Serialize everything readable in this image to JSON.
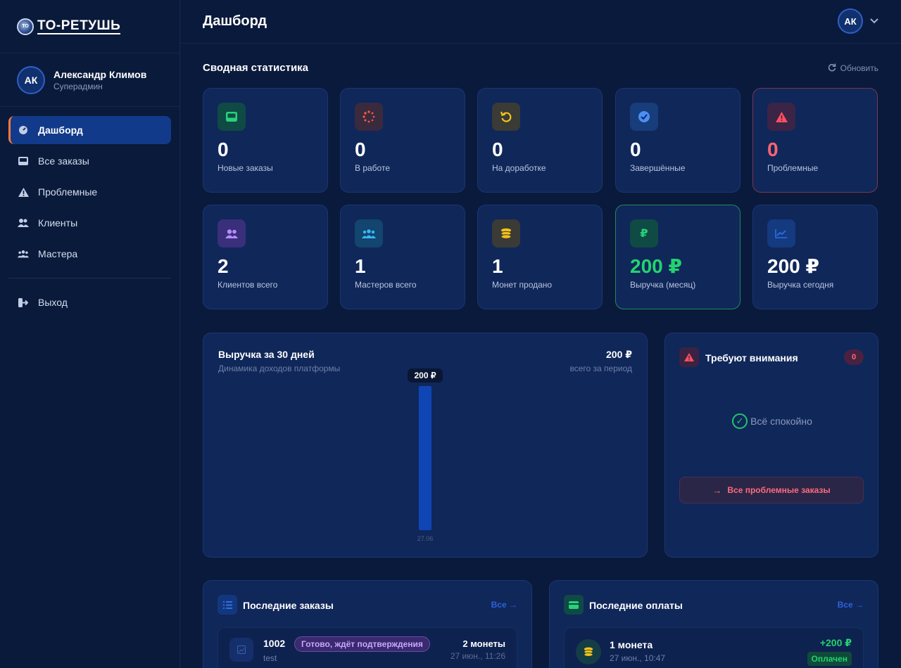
{
  "brand": {
    "logo_text": "ТО-РЕТУШЬ",
    "emblem_text": "ТО"
  },
  "user": {
    "initials": "АК",
    "name": "Александр Климов",
    "role": "Суперадмин"
  },
  "nav": {
    "items": [
      {
        "label": "Дашборд",
        "icon": "dashboard-icon"
      },
      {
        "label": "Все заказы",
        "icon": "inbox-icon"
      },
      {
        "label": "Проблемные",
        "icon": "warning-icon"
      },
      {
        "label": "Клиенты",
        "icon": "users-icon"
      },
      {
        "label": "Мастера",
        "icon": "team-icon"
      }
    ],
    "logout": "Выход"
  },
  "header": {
    "title": "Дашборд",
    "avatar_initials": "АК"
  },
  "summary": {
    "title": "Сводная статистика",
    "refresh_label": "Обновить",
    "row1": [
      {
        "value": "0",
        "label": "Новые заказы"
      },
      {
        "value": "0",
        "label": "В работе"
      },
      {
        "value": "0",
        "label": "На доработке"
      },
      {
        "value": "0",
        "label": "Завершённые"
      },
      {
        "value": "0",
        "label": "Проблемные"
      }
    ],
    "row2": [
      {
        "value": "2",
        "label": "Клиентов всего"
      },
      {
        "value": "1",
        "label": "Мастеров всего"
      },
      {
        "value": "1",
        "label": "Монет продано"
      },
      {
        "value": "200 ₽",
        "label": "Выручка (месяц)"
      },
      {
        "value": "200 ₽",
        "label": "Выручка сегодня"
      }
    ],
    "colors": {
      "green": "#22d36f",
      "red": "#ff6470"
    }
  },
  "revenue_chart": {
    "title": "Выручка за 30 дней",
    "subtitle": "Динамика доходов платформы",
    "total": "200 ₽",
    "total_label": "всего за период"
  },
  "chart_data": {
    "type": "bar",
    "categories": [
      "27.06"
    ],
    "values": [
      200
    ],
    "data_labels": [
      "200 ₽"
    ],
    "title": "Выручка за 30 дней",
    "xlabel": "",
    "ylabel": "",
    "ylim": [
      0,
      200
    ],
    "grid": false,
    "color": "#0f45b5"
  },
  "attention": {
    "title": "Требуют внимания",
    "count": "0",
    "ok_text": "Всё спокойно",
    "button_label": "Все проблемные заказы"
  },
  "recent_orders": {
    "title": "Последние заказы",
    "link": "Все",
    "items": [
      {
        "number": "1002",
        "status": "Готово, ждёт подтверждения",
        "desc": "test",
        "amount": "2 монеты",
        "date": "27 июн., 11:26"
      }
    ]
  },
  "recent_payments": {
    "title": "Последние оплаты",
    "link": "Все",
    "items": [
      {
        "name": "1 монета",
        "date": "27 июн., 10:47",
        "amount": "+200 ₽",
        "status": "Оплачен"
      }
    ]
  }
}
